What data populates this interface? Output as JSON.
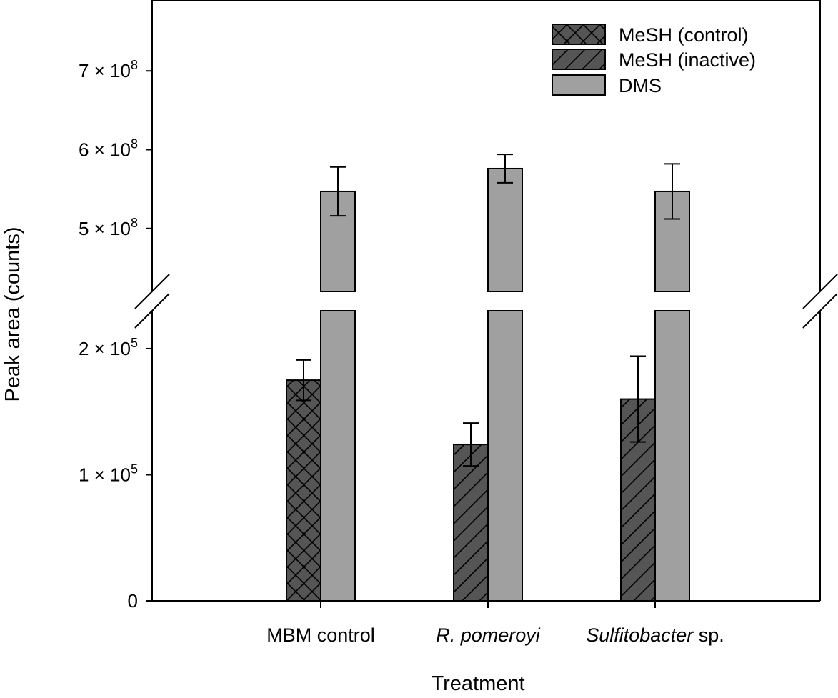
{
  "chart_data": {
    "type": "bar",
    "xlabel": "Treatment",
    "ylabel": "Peak area (counts)",
    "y_axis_break": true,
    "lower_segment": {
      "ylim": [
        0,
        230000
      ],
      "ticks": [
        {
          "value": 0,
          "base": "0",
          "exp": ""
        },
        {
          "value": 100000,
          "base": "1 × 10",
          "exp": "5"
        },
        {
          "value": 200000,
          "base": "2 × 10",
          "exp": "5"
        }
      ]
    },
    "upper_segment": {
      "ylim": [
        420000000,
        790000000
      ],
      "ticks": [
        {
          "value": 500000000,
          "base": "5 × 10",
          "exp": "8"
        },
        {
          "value": 600000000,
          "base": "6 × 10",
          "exp": "8"
        },
        {
          "value": 700000000,
          "base": "7 × 10",
          "exp": "8"
        }
      ]
    },
    "categories": [
      {
        "name": "MBM control",
        "parts": [
          {
            "text": "MBM control",
            "italic": false
          }
        ]
      },
      {
        "name": "R. pomeroyi",
        "parts": [
          {
            "text": "R. pomeroyi",
            "italic": true
          }
        ]
      },
      {
        "name": "Sulfitobacter sp.",
        "parts": [
          {
            "text": "Sulfitobacter",
            "italic": true
          },
          {
            "text": " sp.",
            "italic": false
          }
        ]
      }
    ],
    "series": [
      {
        "name": "MeSH (control)",
        "pattern": "crosshatch",
        "color": "#555555",
        "values": [
          175000,
          null,
          null
        ],
        "errors": [
          16000,
          null,
          null
        ],
        "segment": "lower"
      },
      {
        "name": "MeSH (inactive)",
        "pattern": "diagonal",
        "color": "#555555",
        "values": [
          null,
          124000,
          160000
        ],
        "errors": [
          null,
          17000,
          34000
        ],
        "segment": "lower"
      },
      {
        "name": "DMS",
        "pattern": "solid",
        "color": "#a0a0a0",
        "values": [
          547000000,
          576000000,
          547000000
        ],
        "errors": [
          31000000,
          18000000,
          35000000
        ],
        "segment": "upper"
      }
    ],
    "legend": {
      "position": "top-right",
      "entries": [
        "MeSH (control)",
        "MeSH (inactive)",
        "DMS"
      ]
    },
    "grid": false
  }
}
